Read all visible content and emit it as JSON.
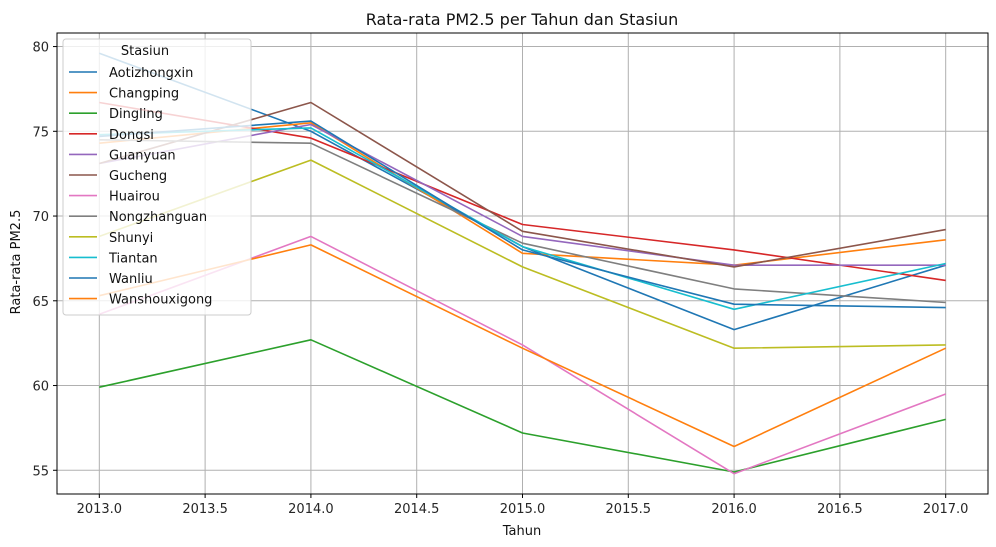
{
  "chart_data": {
    "type": "line",
    "title": "Rata-rata PM2.5 per Tahun dan Stasiun",
    "xlabel": "Tahun",
    "ylabel": "Rata-rata PM2.5",
    "x": [
      2013,
      2014,
      2015,
      2016,
      2017
    ],
    "xlim": [
      2012.8,
      2017.2
    ],
    "ylim": [
      53.6,
      80.8
    ],
    "xticks": [
      2013.0,
      2013.5,
      2014.0,
      2014.5,
      2015.0,
      2015.5,
      2016.0,
      2016.5,
      2017.0
    ],
    "xtick_labels": [
      "2013.0",
      "2013.5",
      "2014.0",
      "2014.5",
      "2015.0",
      "2015.5",
      "2016.0",
      "2016.5",
      "2017.0"
    ],
    "yticks": [
      55,
      60,
      65,
      70,
      75,
      80
    ],
    "ytick_labels": [
      "55",
      "60",
      "65",
      "70",
      "75",
      "80"
    ],
    "grid": true,
    "legend_title": "Stasiun",
    "legend_position": "top-left",
    "series": [
      {
        "name": "Aotizhongxin",
        "color": "#1f77b4",
        "values": [
          79.6,
          75.0,
          68.2,
          63.3,
          67.1
        ]
      },
      {
        "name": "Changping",
        "color": "#ff7f0e",
        "values": [
          74.3,
          75.5,
          67.8,
          67.1,
          68.6
        ]
      },
      {
        "name": "Dingling",
        "color": "#2ca02c",
        "values": [
          59.9,
          62.7,
          57.2,
          54.9,
          58.0
        ]
      },
      {
        "name": "Dongsi",
        "color": "#d62728",
        "values": [
          76.7,
          74.6,
          69.5,
          68.0,
          66.2
        ]
      },
      {
        "name": "Guanyuan",
        "color": "#9467bd",
        "values": [
          73.1,
          75.4,
          68.8,
          67.1,
          67.1
        ]
      },
      {
        "name": "Gucheng",
        "color": "#8c564b",
        "values": [
          73.1,
          76.7,
          69.1,
          67.0,
          69.2
        ]
      },
      {
        "name": "Huairou",
        "color": "#e377c2",
        "values": [
          64.2,
          68.8,
          62.4,
          54.8,
          59.5
        ]
      },
      {
        "name": "Nongzhanguan",
        "color": "#7f7f7f",
        "values": [
          74.5,
          74.3,
          68.4,
          65.7,
          64.9
        ]
      },
      {
        "name": "Shunyi",
        "color": "#bcbd22",
        "values": [
          68.8,
          73.3,
          67.0,
          62.2,
          62.4
        ]
      },
      {
        "name": "Tiantan",
        "color": "#17becf",
        "values": [
          74.8,
          75.2,
          68.2,
          64.5,
          67.2
        ]
      },
      {
        "name": "Wanliu",
        "color": "#1f77b4",
        "values": [
          74.7,
          75.6,
          68.0,
          64.8,
          64.6
        ]
      },
      {
        "name": "Wanshouxigong",
        "color": "#ff7f0e",
        "values": [
          65.3,
          68.3,
          62.2,
          56.4,
          62.2
        ]
      }
    ]
  }
}
